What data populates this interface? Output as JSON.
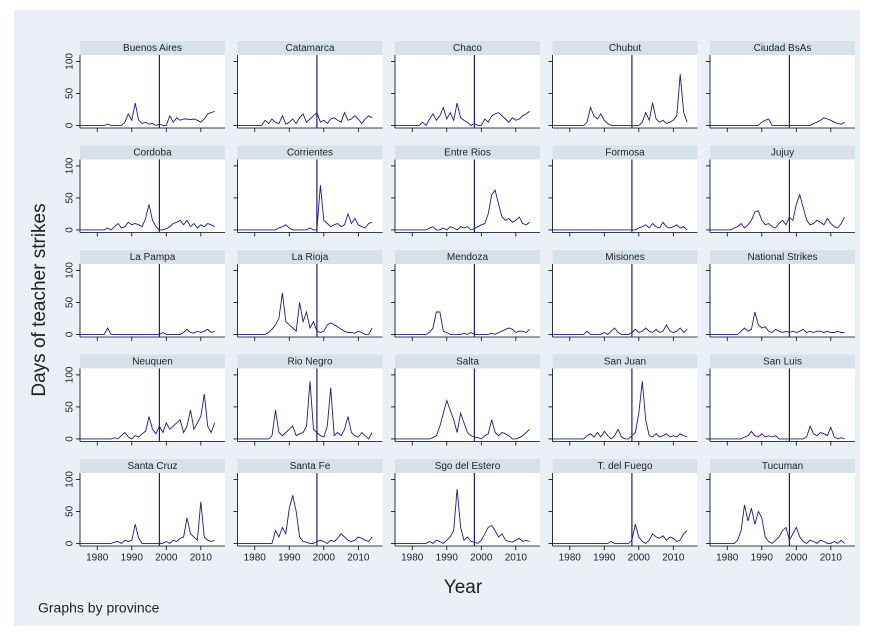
{
  "chart_data": {
    "type": "line",
    "x_label": "Year",
    "y_label": "Days of teacher strikes",
    "note": "Graphs by province",
    "color": "#1c1c8f",
    "vline": 1998,
    "vline_color": "#1c1c8f",
    "x": [
      1975,
      1976,
      1977,
      1978,
      1979,
      1980,
      1981,
      1982,
      1983,
      1984,
      1985,
      1986,
      1987,
      1988,
      1989,
      1990,
      1991,
      1992,
      1993,
      1994,
      1995,
      1996,
      1997,
      1998,
      1999,
      2000,
      2001,
      2002,
      2003,
      2004,
      2005,
      2006,
      2007,
      2008,
      2009,
      2010,
      2011,
      2012,
      2013,
      2014
    ],
    "xlim": [
      1975,
      2017
    ],
    "xticks": [
      1980,
      1990,
      2000,
      2010
    ],
    "ylim": [
      -4,
      110
    ],
    "yticks": [
      0,
      50,
      100
    ],
    "series": [
      {
        "name": "Buenos Aires",
        "values": [
          0,
          0,
          0,
          0,
          0,
          0,
          0,
          0,
          2,
          0,
          0,
          0,
          0,
          5,
          18,
          8,
          35,
          8,
          3,
          5,
          2,
          3,
          0,
          2,
          0,
          0,
          15,
          5,
          12,
          8,
          10,
          10,
          9,
          10,
          8,
          5,
          10,
          18,
          20,
          22
        ]
      },
      {
        "name": "Catamarca",
        "values": [
          0,
          0,
          0,
          0,
          0,
          0,
          0,
          0,
          8,
          3,
          10,
          5,
          3,
          15,
          2,
          5,
          10,
          3,
          12,
          18,
          5,
          10,
          15,
          20,
          5,
          8,
          3,
          10,
          12,
          8,
          5,
          20,
          8,
          10,
          15,
          10,
          3,
          10,
          15,
          12
        ]
      },
      {
        "name": "Chaco",
        "values": [
          0,
          0,
          0,
          0,
          0,
          0,
          0,
          0,
          5,
          0,
          10,
          18,
          8,
          15,
          28,
          10,
          20,
          8,
          35,
          12,
          8,
          5,
          0,
          3,
          0,
          0,
          10,
          5,
          15,
          18,
          20,
          15,
          10,
          5,
          12,
          8,
          10,
          15,
          18,
          22
        ]
      },
      {
        "name": "Chubut",
        "values": [
          0,
          0,
          0,
          0,
          0,
          0,
          0,
          0,
          0,
          0,
          5,
          28,
          15,
          10,
          18,
          8,
          3,
          0,
          0,
          0,
          0,
          0,
          0,
          0,
          0,
          0,
          5,
          20,
          8,
          35,
          10,
          5,
          8,
          3,
          5,
          8,
          15,
          80,
          20,
          5
        ]
      },
      {
        "name": "Ciudad BsAs",
        "values": [
          0,
          0,
          0,
          0,
          0,
          0,
          0,
          0,
          0,
          0,
          0,
          0,
          0,
          0,
          0,
          5,
          8,
          10,
          0,
          0,
          0,
          0,
          0,
          0,
          0,
          0,
          0,
          0,
          0,
          0,
          3,
          5,
          8,
          12,
          10,
          8,
          5,
          3,
          2,
          5
        ]
      },
      {
        "name": "Cordoba",
        "values": [
          0,
          0,
          0,
          0,
          0,
          0,
          0,
          0,
          3,
          0,
          5,
          10,
          3,
          5,
          12,
          8,
          10,
          8,
          5,
          18,
          40,
          15,
          5,
          0,
          0,
          2,
          5,
          10,
          12,
          15,
          8,
          15,
          5,
          10,
          3,
          8,
          5,
          10,
          8,
          5
        ]
      },
      {
        "name": "Corrientes",
        "values": [
          0,
          0,
          0,
          0,
          0,
          0,
          0,
          0,
          0,
          0,
          0,
          0,
          3,
          5,
          8,
          3,
          0,
          0,
          0,
          0,
          0,
          3,
          0,
          0,
          70,
          15,
          10,
          5,
          8,
          10,
          5,
          8,
          25,
          10,
          18,
          8,
          5,
          3,
          10,
          12
        ]
      },
      {
        "name": "Entre Rios",
        "values": [
          0,
          0,
          0,
          0,
          0,
          0,
          0,
          0,
          0,
          0,
          3,
          5,
          0,
          0,
          3,
          0,
          5,
          3,
          0,
          5,
          3,
          5,
          0,
          2,
          5,
          8,
          10,
          25,
          55,
          62,
          40,
          20,
          15,
          18,
          12,
          15,
          20,
          10,
          8,
          12
        ]
      },
      {
        "name": "Formosa",
        "values": [
          0,
          0,
          0,
          0,
          0,
          0,
          0,
          0,
          0,
          0,
          0,
          0,
          0,
          0,
          0,
          0,
          0,
          0,
          0,
          0,
          0,
          0,
          0,
          0,
          0,
          3,
          5,
          8,
          3,
          10,
          5,
          3,
          12,
          5,
          3,
          5,
          8,
          3,
          5,
          0
        ]
      },
      {
        "name": "Jujuy",
        "values": [
          0,
          0,
          0,
          0,
          0,
          0,
          0,
          3,
          5,
          10,
          3,
          8,
          15,
          28,
          30,
          15,
          8,
          10,
          5,
          3,
          10,
          15,
          8,
          20,
          15,
          40,
          55,
          35,
          15,
          8,
          10,
          15,
          12,
          8,
          18,
          10,
          5,
          3,
          10,
          20
        ]
      },
      {
        "name": "La Pampa",
        "values": [
          0,
          0,
          0,
          0,
          0,
          0,
          0,
          0,
          10,
          0,
          0,
          0,
          0,
          0,
          0,
          0,
          0,
          0,
          0,
          0,
          0,
          0,
          0,
          0,
          3,
          0,
          0,
          0,
          0,
          0,
          3,
          8,
          3,
          2,
          5,
          3,
          5,
          8,
          3,
          5
        ]
      },
      {
        "name": "La Rioja",
        "values": [
          0,
          0,
          0,
          0,
          0,
          0,
          0,
          0,
          0,
          3,
          8,
          15,
          25,
          65,
          20,
          15,
          10,
          5,
          50,
          20,
          35,
          10,
          20,
          5,
          3,
          5,
          15,
          18,
          15,
          12,
          8,
          5,
          3,
          3,
          2,
          5,
          3,
          0,
          0,
          10
        ]
      },
      {
        "name": "Mendoza",
        "values": [
          0,
          0,
          0,
          0,
          0,
          0,
          0,
          0,
          0,
          0,
          3,
          10,
          35,
          35,
          5,
          3,
          0,
          0,
          0,
          0,
          2,
          0,
          3,
          0,
          0,
          0,
          0,
          0,
          2,
          0,
          3,
          5,
          8,
          10,
          8,
          3,
          5,
          5,
          3,
          8
        ]
      },
      {
        "name": "Misiones",
        "values": [
          0,
          0,
          0,
          0,
          0,
          0,
          0,
          0,
          0,
          0,
          5,
          0,
          0,
          0,
          0,
          3,
          0,
          5,
          10,
          3,
          0,
          0,
          0,
          3,
          8,
          3,
          5,
          10,
          5,
          3,
          8,
          3,
          5,
          15,
          5,
          3,
          5,
          10,
          3,
          8
        ]
      },
      {
        "name": "National Strikes",
        "values": [
          0,
          0,
          0,
          0,
          0,
          0,
          0,
          0,
          0,
          5,
          10,
          5,
          8,
          35,
          15,
          10,
          12,
          5,
          3,
          8,
          5,
          3,
          5,
          3,
          5,
          3,
          5,
          8,
          3,
          5,
          3,
          5,
          5,
          3,
          5,
          3,
          3,
          5,
          3,
          3
        ]
      },
      {
        "name": "Neuquen",
        "values": [
          0,
          0,
          0,
          0,
          0,
          0,
          0,
          0,
          0,
          0,
          2,
          0,
          5,
          10,
          3,
          0,
          5,
          3,
          8,
          12,
          35,
          15,
          8,
          20,
          10,
          25,
          15,
          20,
          25,
          30,
          10,
          20,
          45,
          15,
          25,
          35,
          70,
          20,
          10,
          25
        ]
      },
      {
        "name": "Rio Negro",
        "values": [
          0,
          0,
          0,
          0,
          0,
          0,
          0,
          0,
          0,
          0,
          5,
          45,
          10,
          5,
          10,
          15,
          20,
          5,
          8,
          10,
          20,
          90,
          15,
          10,
          5,
          3,
          20,
          80,
          5,
          10,
          5,
          15,
          35,
          10,
          5,
          3,
          10,
          5,
          0,
          10
        ]
      },
      {
        "name": "Salta",
        "values": [
          0,
          0,
          0,
          0,
          0,
          0,
          0,
          0,
          0,
          0,
          0,
          2,
          5,
          20,
          40,
          60,
          45,
          30,
          10,
          40,
          25,
          10,
          5,
          3,
          2,
          0,
          5,
          8,
          30,
          10,
          5,
          10,
          8,
          5,
          0,
          0,
          2,
          5,
          10,
          15
        ]
      },
      {
        "name": "San Juan",
        "values": [
          0,
          0,
          0,
          0,
          0,
          0,
          0,
          0,
          0,
          0,
          5,
          8,
          3,
          10,
          3,
          12,
          5,
          0,
          5,
          15,
          3,
          0,
          0,
          5,
          10,
          40,
          90,
          30,
          5,
          3,
          8,
          3,
          5,
          8,
          3,
          5,
          3,
          8,
          5,
          3
        ]
      },
      {
        "name": "San Luis",
        "values": [
          0,
          0,
          0,
          0,
          0,
          0,
          0,
          0,
          0,
          0,
          3,
          5,
          12,
          5,
          3,
          8,
          3,
          5,
          3,
          5,
          0,
          0,
          0,
          0,
          0,
          0,
          0,
          0,
          3,
          20,
          8,
          5,
          10,
          8,
          5,
          18,
          3,
          0,
          2,
          0
        ]
      },
      {
        "name": "Santa Cruz",
        "values": [
          0,
          0,
          0,
          0,
          0,
          0,
          0,
          0,
          0,
          0,
          2,
          3,
          0,
          5,
          3,
          5,
          30,
          8,
          0,
          0,
          0,
          0,
          0,
          0,
          0,
          3,
          0,
          5,
          3,
          8,
          10,
          40,
          15,
          10,
          5,
          65,
          10,
          5,
          3,
          5
        ]
      },
      {
        "name": "Santa Fe",
        "values": [
          0,
          0,
          0,
          0,
          0,
          0,
          0,
          0,
          0,
          0,
          0,
          20,
          10,
          25,
          15,
          55,
          75,
          50,
          10,
          3,
          2,
          0,
          0,
          3,
          5,
          3,
          0,
          5,
          3,
          8,
          15,
          10,
          5,
          3,
          5,
          10,
          8,
          5,
          3,
          10
        ]
      },
      {
        "name": "Sgo del Estero",
        "values": [
          0,
          0,
          0,
          0,
          0,
          0,
          0,
          0,
          0,
          0,
          3,
          0,
          5,
          3,
          0,
          5,
          10,
          20,
          85,
          25,
          5,
          10,
          3,
          2,
          0,
          5,
          15,
          25,
          28,
          20,
          10,
          15,
          5,
          3,
          2,
          5,
          8,
          3,
          5,
          3
        ]
      },
      {
        "name": "T. del Fuego",
        "values": [
          0,
          0,
          0,
          0,
          0,
          0,
          0,
          0,
          0,
          0,
          0,
          0,
          0,
          0,
          0,
          0,
          0,
          3,
          0,
          0,
          0,
          0,
          0,
          5,
          30,
          10,
          3,
          0,
          5,
          15,
          10,
          8,
          12,
          5,
          10,
          8,
          3,
          5,
          15,
          20
        ]
      },
      {
        "name": "Tucuman",
        "values": [
          0,
          0,
          0,
          0,
          0,
          0,
          0,
          0,
          5,
          20,
          60,
          35,
          55,
          30,
          50,
          40,
          10,
          3,
          0,
          5,
          10,
          20,
          25,
          5,
          15,
          25,
          10,
          3,
          0,
          5,
          3,
          0,
          5,
          3,
          0,
          0,
          3,
          0,
          5,
          0
        ]
      }
    ]
  }
}
